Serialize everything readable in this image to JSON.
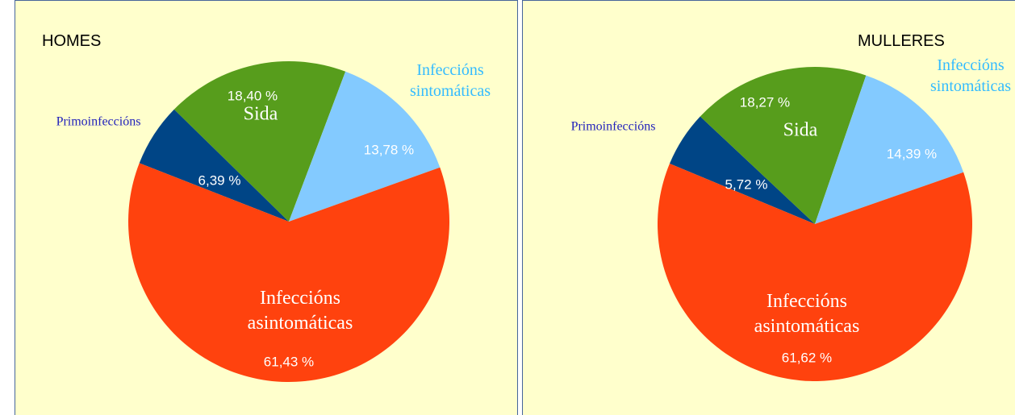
{
  "chart_data": [
    {
      "type": "pie",
      "title": "HOMES",
      "categories": [
        "Primoinfeccións",
        "Sida",
        "Infeccións sintomáticas",
        "Infeccións asintomáticas"
      ],
      "values": [
        6.39,
        18.4,
        13.78,
        61.43
      ],
      "value_labels": [
        "6,39 %",
        "18,40 %",
        "13,78 %",
        "61,43 %"
      ],
      "colors": [
        "#004586",
        "#579d1c",
        "#83caff",
        "#ff420e"
      ]
    },
    {
      "type": "pie",
      "title": "MULLERES",
      "categories": [
        "Primoinfeccións",
        "Sida",
        "Infeccións sintomáticas",
        "Infeccións asintomáticas"
      ],
      "values": [
        5.72,
        18.27,
        14.39,
        61.62
      ],
      "value_labels": [
        "5,72 %",
        "18,27 %",
        "14,39 %",
        "61,62 %"
      ],
      "colors": [
        "#004586",
        "#579d1c",
        "#83caff",
        "#ff420e"
      ]
    }
  ]
}
